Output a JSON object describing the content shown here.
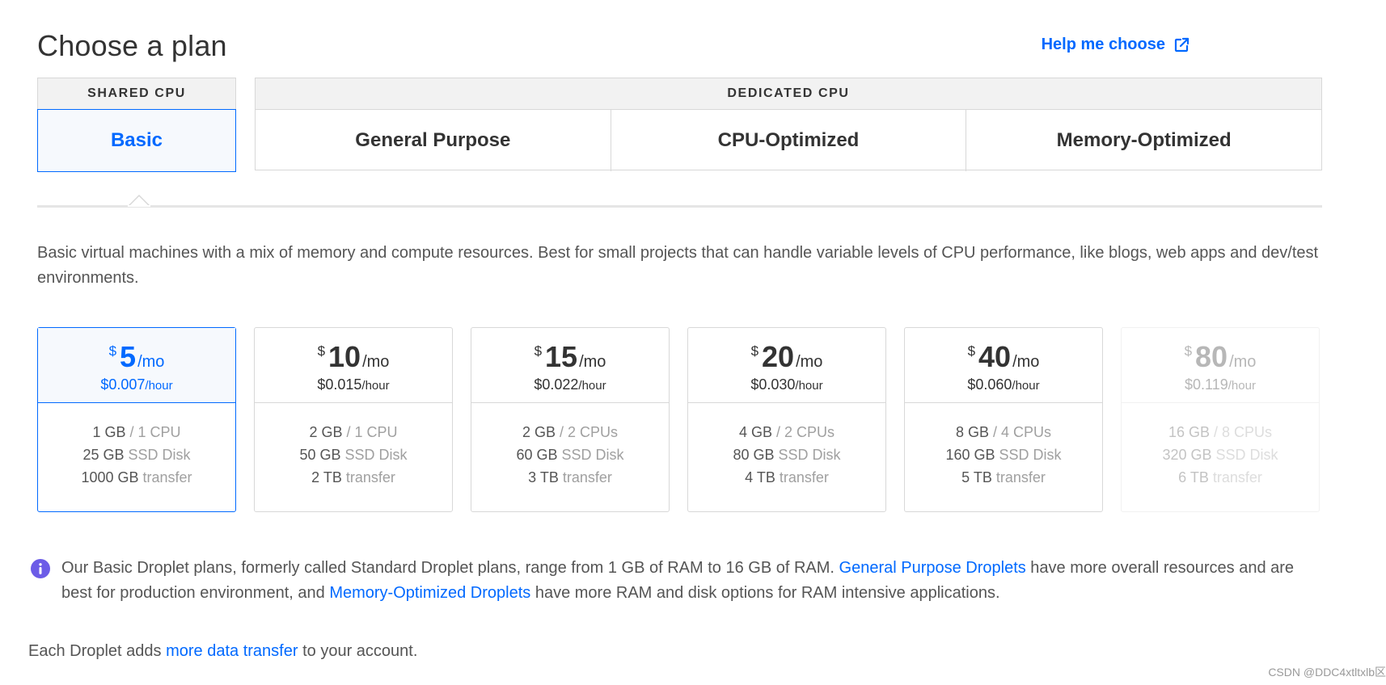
{
  "header": {
    "title": "Choose a plan",
    "help_label": "Help me choose"
  },
  "plan_groups": {
    "shared_label": "SHARED CPU",
    "dedicated_label": "DEDICATED CPU",
    "tabs": [
      {
        "label": "Basic",
        "active": true
      },
      {
        "label": "General Purpose"
      },
      {
        "label": "CPU-Optimized"
      },
      {
        "label": "Memory-Optimized"
      }
    ]
  },
  "description": "Basic virtual machines with a mix of memory and compute resources. Best for small projects that can handle variable levels of CPU performance, like blogs, web apps and dev/test environments.",
  "currency_symbol": "$",
  "per_month": "/mo",
  "per_hour": "/hour",
  "plans": [
    {
      "price": "5",
      "hourly": "$0.007",
      "ram": "1 GB",
      "cpu": " / 1 CPU",
      "disk": "25 GB",
      "disk_label": " SSD Disk",
      "transfer": "1000 GB",
      "transfer_label": " transfer",
      "selected": true
    },
    {
      "price": "10",
      "hourly": "$0.015",
      "ram": "2 GB",
      "cpu": " / 1 CPU",
      "disk": "50 GB",
      "disk_label": " SSD Disk",
      "transfer": "2 TB",
      "transfer_label": " transfer"
    },
    {
      "price": "15",
      "hourly": "$0.022",
      "ram": "2 GB",
      "cpu": " / 2 CPUs",
      "disk": "60 GB",
      "disk_label": " SSD Disk",
      "transfer": "3 TB",
      "transfer_label": " transfer"
    },
    {
      "price": "20",
      "hourly": "$0.030",
      "ram": "4 GB",
      "cpu": " / 2 CPUs",
      "disk": "80 GB",
      "disk_label": " SSD Disk",
      "transfer": "4 TB",
      "transfer_label": " transfer"
    },
    {
      "price": "40",
      "hourly": "$0.060",
      "ram": "8 GB",
      "cpu": " / 4 CPUs",
      "disk": "160 GB",
      "disk_label": " SSD Disk",
      "transfer": "5 TB",
      "transfer_label": " transfer"
    },
    {
      "price": "80",
      "hourly": "$0.119",
      "ram": "16 GB",
      "cpu": " / 8 CPUs",
      "disk": "320 GB",
      "disk_label": " SSD Disk",
      "transfer": "6 TB",
      "transfer_label": " transfer",
      "disabled": true
    }
  ],
  "info_note": {
    "text_1": "Our Basic Droplet plans, formerly called Standard Droplet plans, range from 1 GB of RAM to 16 GB of RAM. ",
    "link_1": "General Purpose Droplets",
    "text_2": " have more overall resources and are best for production environment, and ",
    "link_2": "Memory-Optimized Droplets",
    "text_3": " have more RAM and disk options for RAM intensive applications."
  },
  "footer": {
    "text_1": "Each Droplet adds ",
    "link": "more data transfer",
    "text_2": " to your account."
  },
  "watermark": "CSDN @DDC4xtltxlb区",
  "colors": {
    "accent": "#0069ff",
    "info_icon": "#6c5ce7"
  }
}
